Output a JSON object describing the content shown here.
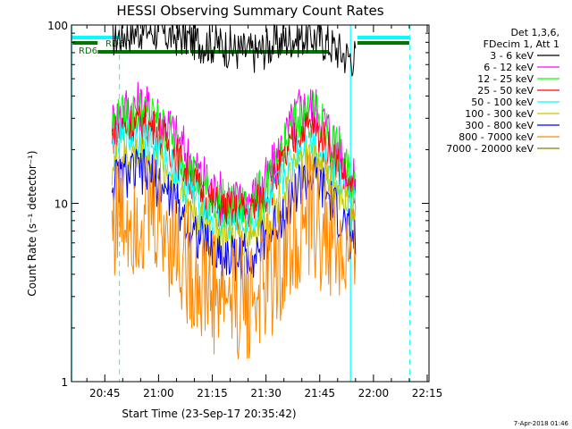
{
  "chart_data": {
    "type": "line",
    "title": "HESSI Observing Summary Count Rates",
    "xlabel": "Start Time (23-Sep-17 20:35:42)",
    "ylabel": "Count Rate (s⁻¹ detector⁻¹)",
    "yscale": "log",
    "ylim": [
      1,
      100
    ],
    "xlim": [
      "20:35:42",
      "22:15:30"
    ],
    "x_ticks": [
      "20:45",
      "21:00",
      "21:15",
      "21:30",
      "21:45",
      "22:00",
      "22:15"
    ],
    "y_ticks": [
      "1",
      "10",
      "100"
    ],
    "legend_header": [
      "Det 1,3,6,",
      "FDecim 1, Att 1"
    ],
    "legend_position": "right",
    "series": [
      {
        "name": "3 - 6 keV",
        "color": "#000000",
        "x": [
          "20:47",
          "20:52",
          "20:57",
          "21:02",
          "21:07",
          "21:12",
          "21:17",
          "21:22",
          "21:27",
          "21:32",
          "21:37",
          "21:42",
          "21:47",
          "21:52",
          "21:55"
        ],
        "y": [
          85,
          92,
          95,
          88,
          86,
          80,
          78,
          72,
          70,
          78,
          85,
          88,
          80,
          68,
          66
        ]
      },
      {
        "name": "6 - 12 keV",
        "color": "#ff00ff",
        "x": [
          "20:47",
          "20:51",
          "20:55",
          "20:59",
          "21:03",
          "21:07",
          "21:11",
          "21:15",
          "21:19",
          "21:23",
          "21:27",
          "21:31",
          "21:35",
          "21:39",
          "21:43",
          "21:47",
          "21:51",
          "21:55"
        ],
        "y": [
          28,
          34,
          35,
          32,
          27,
          20,
          15,
          12,
          10.5,
          10,
          11,
          14,
          22,
          33,
          35,
          27,
          19,
          12
        ]
      },
      {
        "name": "12 - 25 keV",
        "color": "#00ff00",
        "x": [
          "20:47",
          "20:51",
          "20:55",
          "20:59",
          "21:03",
          "21:07",
          "21:11",
          "21:15",
          "21:19",
          "21:23",
          "21:27",
          "21:31",
          "21:35",
          "21:39",
          "21:43",
          "21:47",
          "21:51",
          "21:55"
        ],
        "y": [
          27,
          31,
          32,
          29,
          24,
          18,
          13,
          11,
          9.8,
          9.5,
          10.5,
          13,
          20,
          30,
          32,
          25,
          18,
          11.5
        ]
      },
      {
        "name": "25 - 50 keV",
        "color": "#ff0000",
        "x": [
          "20:47",
          "20:51",
          "20:55",
          "20:59",
          "21:03",
          "21:07",
          "21:11",
          "21:15",
          "21:19",
          "21:23",
          "21:27",
          "21:31",
          "21:35",
          "21:39",
          "21:43",
          "21:47",
          "21:51",
          "21:55"
        ],
        "y": [
          24,
          27,
          28,
          26,
          21,
          16,
          12,
          10,
          9,
          9,
          9.5,
          12,
          17,
          25,
          27,
          21,
          15.5,
          10.5
        ]
      },
      {
        "name": "50 - 100 keV",
        "color": "#00ffff",
        "x": [
          "20:47",
          "20:51",
          "20:55",
          "20:59",
          "21:03",
          "21:07",
          "21:11",
          "21:15",
          "21:19",
          "21:23",
          "21:27",
          "21:31",
          "21:35",
          "21:39",
          "21:43",
          "21:47",
          "21:51",
          "21:55"
        ],
        "y": [
          20,
          23,
          23.5,
          21,
          17,
          13,
          10,
          8,
          7.5,
          7.5,
          8,
          10,
          14,
          20,
          22,
          17,
          13,
          9
        ]
      },
      {
        "name": "100 - 300 keV",
        "color": "#c8c800",
        "x": [
          "20:47",
          "20:51",
          "20:55",
          "20:59",
          "21:03",
          "21:07",
          "21:11",
          "21:15",
          "21:19",
          "21:23",
          "21:27",
          "21:31",
          "21:35",
          "21:39",
          "21:43",
          "21:47",
          "21:51",
          "21:55"
        ],
        "y": [
          16,
          18,
          19,
          17,
          14,
          11,
          8.5,
          7,
          6.5,
          6.5,
          7,
          8.5,
          11.5,
          16,
          18,
          14,
          11,
          8
        ]
      },
      {
        "name": "300 - 800 keV",
        "color": "#0000ff",
        "x": [
          "20:47",
          "20:51",
          "20:55",
          "20:59",
          "21:03",
          "21:07",
          "21:11",
          "21:15",
          "21:19",
          "21:23",
          "21:27",
          "21:31",
          "21:35",
          "21:39",
          "21:43",
          "21:47",
          "21:51",
          "21:55"
        ],
        "y": [
          13,
          14.5,
          15,
          13.5,
          11,
          8.5,
          6.5,
          5.5,
          5,
          5,
          5.3,
          6.5,
          9,
          12.5,
          14,
          11,
          8,
          6
        ]
      },
      {
        "name": "800 - 7000 keV",
        "color": "#ff8800",
        "x": [
          "20:47",
          "20:51",
          "20:55",
          "20:59",
          "21:03",
          "21:07",
          "21:11",
          "21:15",
          "21:19",
          "21:23",
          "21:27",
          "21:31",
          "21:35",
          "21:39",
          "21:43",
          "21:47",
          "21:51",
          "21:55"
        ],
        "y": [
          8.5,
          9,
          9.2,
          8.5,
          7,
          5,
          3.8,
          3.2,
          3,
          3,
          3.1,
          3.8,
          5.2,
          7.5,
          8.5,
          6.5,
          5,
          3.8
        ]
      },
      {
        "name": "7000 - 20000 keV",
        "color": "#808000",
        "x": [],
        "y": []
      }
    ],
    "annotations": [
      "RD6",
      "RD6"
    ],
    "footer": "7-Apr-2018 01:46"
  }
}
